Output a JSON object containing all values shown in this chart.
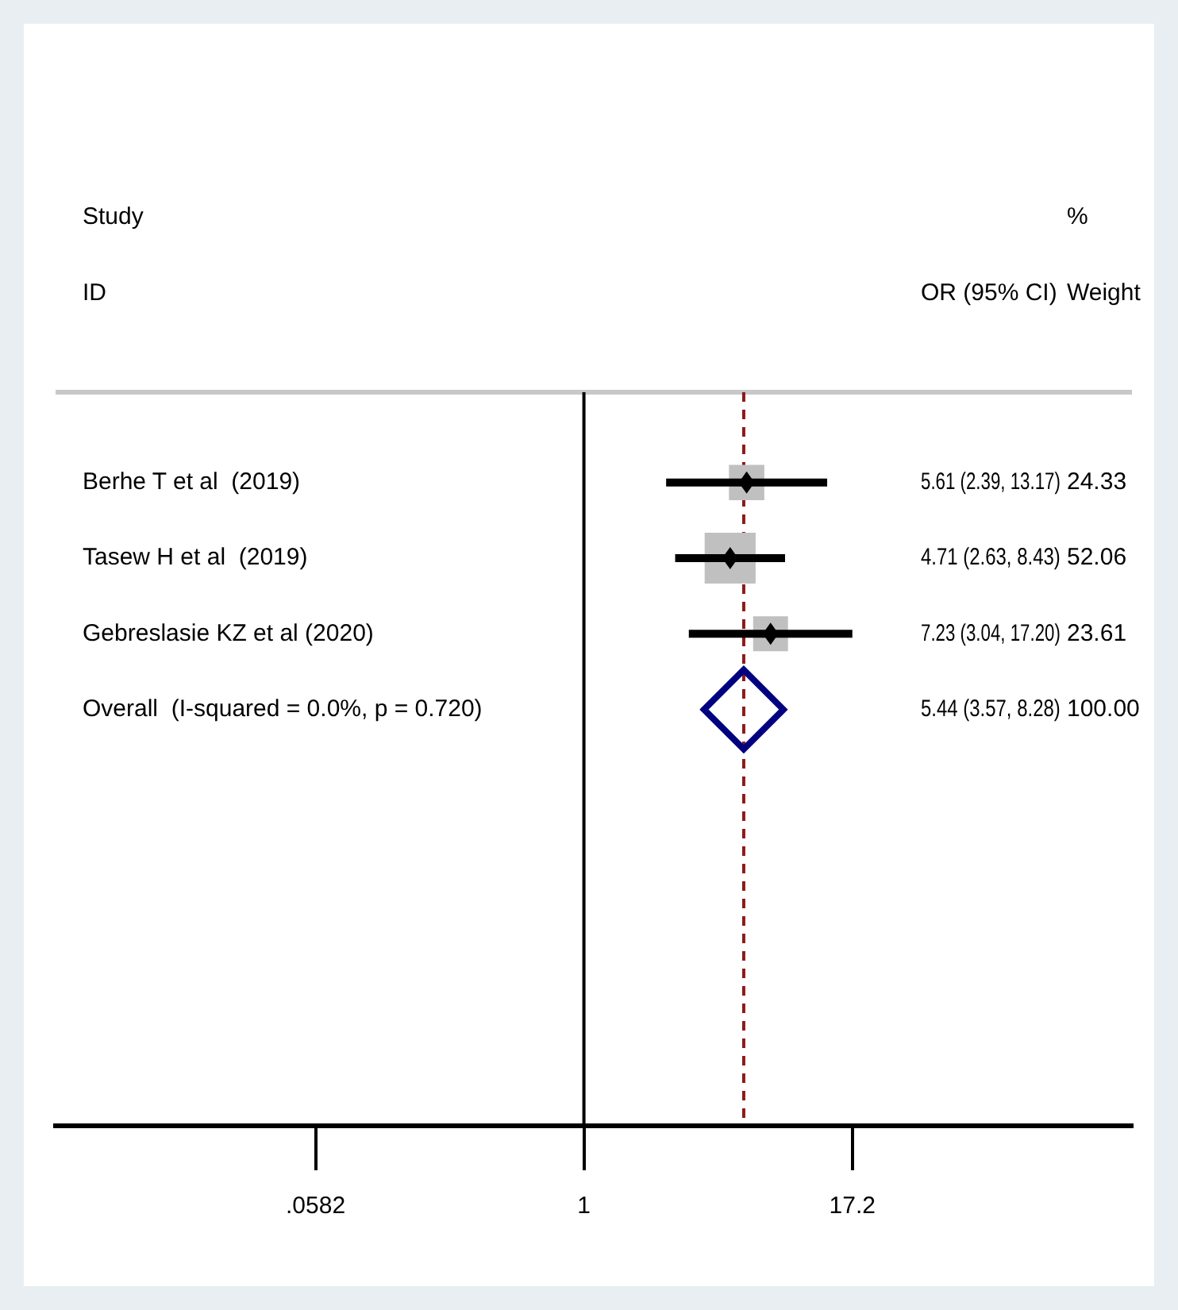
{
  "chart_data": {
    "type": "scatter",
    "orientation": "horizontal",
    "categories": [
      "Berhe T et al  (2019)",
      "Tasew H et al  (2019)",
      "Gebreslasie KZ et al (2020)",
      "Overall  (I-squared = 0.0%, p = 0.720)",
      null,
      null,
      null,
      null,
      null
    ],
    "series": [
      {
        "color": "#c0c0c0",
        "marker": "square",
        "values": [
          5.61,
          4.71,
          7.23,
          null,
          null,
          null,
          null,
          null,
          null
        ],
        "sizes": [
          0.467,
          1,
          0.454,
          null,
          null,
          null,
          null,
          null,
          null
        ]
      },
      {
        "color": "#000000",
        "marker": "diamond",
        "values": [
          5.61,
          4.71,
          7.23,
          null,
          null,
          null,
          null,
          null,
          null
        ],
        "errors": [
          [
            2.39,
            13.17
          ],
          [
            2.63,
            8.43
          ],
          [
            3.04,
            17.2
          ],
          null,
          null,
          null,
          null,
          null,
          null
        ]
      },
      {
        "color": "#000080",
        "marker": "diamond",
        "values": [
          null,
          null,
          null,
          5.44,
          null,
          null,
          null,
          null,
          null
        ]
      }
    ],
    "log": "x",
    "xlim": [
      0.0037,
      333
    ],
    "xticks": [
      {
        "value": 0.0582,
        "label": ".0582"
      },
      1,
      17.2
    ],
    "ref_lines": [
      {
        "axis": "x",
        "value": 1,
        "color": "#000000",
        "line_style": "solid"
      },
      {
        "axis": "x",
        "value": 5.44,
        "color": "#8b1a1a",
        "line_style": "dashed"
      }
    ],
    "annotations": [
      "Study",
      "ID",
      "OR (95% CI)",
      "%",
      "Weight",
      "5.61 (2.39, 13.17)",
      "4.71 (2.63, 8.43)",
      "7.23 (3.04, 17.20)",
      "5.44 (3.57, 8.28)",
      "24.33",
      "52.06",
      "23.61",
      "100.00"
    ],
    "grid": false,
    "legend": false
  }
}
